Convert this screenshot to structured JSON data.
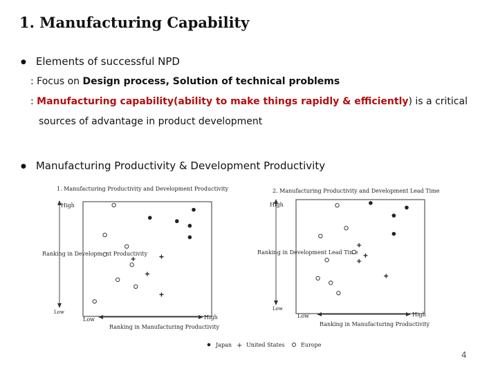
{
  "title": "1. Manufacturing Capability",
  "bullets": {
    "b1": "Elements of successful NPD",
    "b1_sub1_prefix": ": Focus on ",
    "b1_sub1_bold": "Design process, Solution of technical problems",
    "b1_sub2_prefix": ": ",
    "b1_sub2_red": "Manufacturing capability(ability to make things rapidly & efficiently",
    "b1_sub2_suffix": ") is a critical",
    "b1_sub2_cont": "sources of advantage in product development",
    "b2": "Manufacturing Productivity & Development Productivity"
  },
  "figure": {
    "chart_data": [
      {
        "type": "scatter",
        "title": "1. Manufacturing Productivity and Development Productivity",
        "xlabel": "Ranking in Manufacturing Productivity",
        "ylabel": "Ranking in Development Productivity",
        "x_low": "Low",
        "x_high": "High",
        "y_low": "Low",
        "y_high": "High",
        "xlim": [
          0,
          10
        ],
        "ylim": [
          0,
          10
        ],
        "series": [
          {
            "name": "Japan",
            "marker": "filled-circle",
            "points": [
              [
                8.6,
                9.3
              ],
              [
                5.2,
                8.6
              ],
              [
                7.3,
                8.3
              ],
              [
                8.3,
                7.9
              ],
              [
                8.3,
                6.9
              ]
            ]
          },
          {
            "name": "United States",
            "marker": "plus",
            "points": [
              [
                6.1,
                5.2
              ],
              [
                3.9,
                5.0
              ],
              [
                5.0,
                3.7
              ],
              [
                6.1,
                1.9
              ]
            ]
          },
          {
            "name": "Europe",
            "marker": "open-circle",
            "points": [
              [
                2.4,
                9.7
              ],
              [
                1.7,
                7.1
              ],
              [
                3.4,
                6.1
              ],
              [
                1.7,
                5.4
              ],
              [
                3.8,
                4.5
              ],
              [
                2.7,
                3.2
              ],
              [
                4.1,
                2.6
              ],
              [
                0.9,
                1.3
              ]
            ]
          }
        ]
      },
      {
        "type": "scatter",
        "title": "2. Manufacturing Productivity and Development Lead Time",
        "xlabel": "Ranking in Manufacturing Productivity",
        "ylabel": "Ranking in Development Lead Time",
        "x_low": "Low",
        "x_high": "High",
        "y_low": "Low",
        "y_high": "High",
        "xlim": [
          0,
          10
        ],
        "ylim": [
          0,
          10
        ],
        "series": [
          {
            "name": "Japan",
            "marker": "filled-circle",
            "points": [
              [
                5.8,
                9.7
              ],
              [
                8.6,
                9.3
              ],
              [
                7.6,
                8.6
              ],
              [
                7.6,
                7.0
              ]
            ]
          },
          {
            "name": "United States",
            "marker": "plus",
            "points": [
              [
                4.9,
                6.0
              ],
              [
                5.4,
                5.1
              ],
              [
                4.9,
                4.6
              ],
              [
                7.0,
                3.3
              ]
            ]
          },
          {
            "name": "Europe",
            "marker": "open-circle",
            "points": [
              [
                3.2,
                9.5
              ],
              [
                3.9,
                7.5
              ],
              [
                1.9,
                6.8
              ],
              [
                4.5,
                5.4
              ],
              [
                2.4,
                4.7
              ],
              [
                1.7,
                3.1
              ],
              [
                2.7,
                2.7
              ],
              [
                3.3,
                1.8
              ]
            ]
          }
        ]
      }
    ],
    "legend": [
      {
        "marker": "filled-circle",
        "label": "Japan"
      },
      {
        "marker": "plus",
        "label": "United States"
      },
      {
        "marker": "open-circle",
        "label": "Europe"
      }
    ]
  },
  "page_number": "4"
}
